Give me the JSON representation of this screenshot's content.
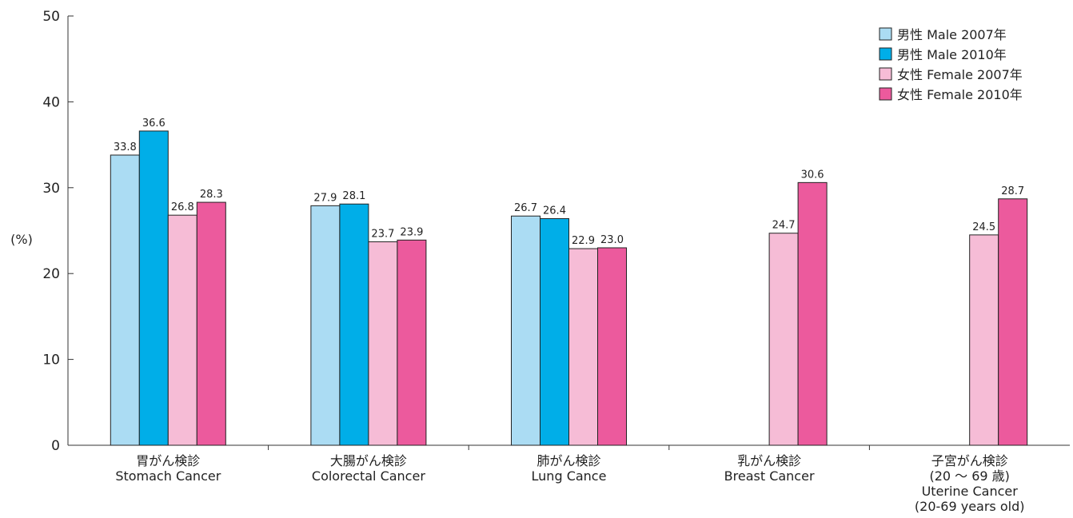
{
  "chart_data": {
    "type": "bar",
    "ylabel": "(%)",
    "ylim": [
      0,
      50
    ],
    "yticks": [
      "0",
      "10",
      "20",
      "30",
      "40",
      "50"
    ],
    "grid": false,
    "legend_position": "top-right",
    "categories": [
      [
        "胃がん検診",
        "Stomach Cancer"
      ],
      [
        "大腸がん検診",
        "Colorectal Cancer"
      ],
      [
        "肺がん検診",
        "Lung Cance"
      ],
      [
        "乳がん検診",
        "Breast Cancer"
      ],
      [
        "子宮がん検診",
        "(20 ～ 69 歳)",
        "Uterine Cancer",
        "(20-69 years old)"
      ]
    ],
    "series": [
      {
        "name": "男性 Male 2007年",
        "color": "#abdcf3",
        "values": [
          33.8,
          27.9,
          26.7,
          0,
          0
        ],
        "labels": [
          "33.8",
          "27.9",
          "26.7",
          "",
          ""
        ]
      },
      {
        "name": "男性 Male 2010年",
        "color": "#00aee8",
        "values": [
          36.6,
          28.1,
          26.4,
          0,
          0
        ],
        "labels": [
          "36.6",
          "28.1",
          "26.4",
          "",
          ""
        ]
      },
      {
        "name": "女性 Female 2007年",
        "color": "#f6bcd6",
        "values": [
          26.8,
          23.7,
          22.9,
          24.7,
          24.5
        ],
        "labels": [
          "26.8",
          "23.7",
          "22.9",
          "24.7",
          "24.5"
        ]
      },
      {
        "name": "女性 Female 2010年",
        "color": "#ec5a9d",
        "values": [
          28.3,
          23.9,
          23.0,
          30.6,
          28.7
        ],
        "labels": [
          "28.3",
          "23.9",
          "23.0",
          "30.6",
          "28.7"
        ]
      }
    ]
  }
}
